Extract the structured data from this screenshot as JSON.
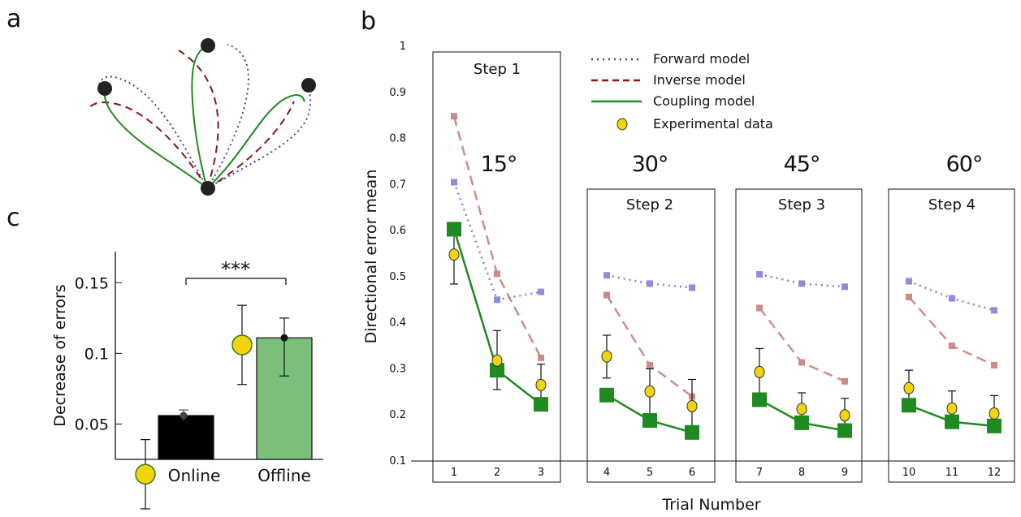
{
  "panel_labels": {
    "a": "a",
    "b": "b",
    "c": "c"
  },
  "colors": {
    "forward": "#3f3fa8",
    "inverse": "#8b1414",
    "coupling": "#1f8a1f",
    "experimental": "#f2d40a",
    "online_bar": "#000000",
    "offline_bar": "#7cbf7a"
  },
  "chart_data": [
    {
      "panel": "a",
      "type": "diagram",
      "description_points": [
        "center",
        "left-target",
        "top-target",
        "right-target"
      ]
    },
    {
      "panel": "b",
      "type": "line",
      "xlabel": "Trial Number",
      "ylabel": "Directional error  mean",
      "ylim": [
        0.1,
        1
      ],
      "yticks": [
        "0.1",
        "0.2",
        "0.3",
        "0.4",
        "0.5",
        "0.6",
        "0.7",
        "0.8",
        "0.9",
        "1"
      ],
      "x_tick_labels": [
        "1",
        "2",
        "3",
        "4",
        "5",
        "6",
        "7",
        "8",
        "9",
        "10",
        "11",
        "12"
      ],
      "steps": [
        {
          "label": "Step 1",
          "angle": "15°",
          "trials": [
            1,
            2,
            3
          ]
        },
        {
          "label": "Step 2",
          "angle": "30°",
          "trials": [
            4,
            5,
            6
          ]
        },
        {
          "label": "Step 3",
          "angle": "45°",
          "trials": [
            7,
            8,
            9
          ]
        },
        {
          "label": "Step 4",
          "angle": "60°",
          "trials": [
            10,
            11,
            12
          ]
        }
      ],
      "legend": [
        {
          "key": "forward",
          "label": "Forward model"
        },
        {
          "key": "inverse",
          "label": "Inverse model"
        },
        {
          "key": "coupling",
          "label": "Coupling model"
        },
        {
          "key": "experimental",
          "label": "Experimental data"
        }
      ],
      "series": {
        "forward": [
          0.705,
          0.45,
          0.467,
          0.503,
          0.485,
          0.476,
          0.505,
          0.485,
          0.478,
          0.49,
          0.453,
          0.427
        ],
        "inverse": [
          0.848,
          0.506,
          0.324,
          0.46,
          0.308,
          0.24,
          0.432,
          0.314,
          0.273,
          0.456,
          0.35,
          0.308
        ],
        "coupling": [
          0.603,
          0.297,
          0.223,
          0.243,
          0.188,
          0.162,
          0.233,
          0.183,
          0.166,
          0.221,
          0.185,
          0.176
        ],
        "experimental": {
          "mean": [
            0.548,
            0.318,
            0.265,
            0.327,
            0.251,
            0.219,
            0.293,
            0.213,
            0.199,
            0.258,
            0.214,
            0.203
          ],
          "upper": [
            0.61,
            0.383,
            0.31,
            0.373,
            0.3,
            0.277,
            0.344,
            0.248,
            0.236,
            0.297,
            0.252,
            0.242
          ],
          "lower": [
            0.484,
            0.255,
            0.22,
            0.28,
            0.2,
            0.162,
            0.24,
            0.178,
            0.162,
            0.218,
            0.175,
            0.165
          ]
        }
      }
    },
    {
      "panel": "c",
      "type": "bar",
      "ylabel": "Decrease of errors",
      "ylim": [
        0.025,
        0.172
      ],
      "yticks": [
        "0.05",
        "0.1",
        "0.15"
      ],
      "categories": [
        "Online",
        "Offline"
      ],
      "values": [
        0.056,
        0.111
      ],
      "model_error_upper": [
        0.06,
        0.125
      ],
      "model_error_lower": [
        0.052,
        0.084
      ],
      "experimental_mean": [
        0.0145,
        0.106
      ],
      "experimental_upper": [
        0.039,
        0.134
      ],
      "experimental_lower": [
        -0.01,
        0.078
      ],
      "significance": "***"
    }
  ]
}
